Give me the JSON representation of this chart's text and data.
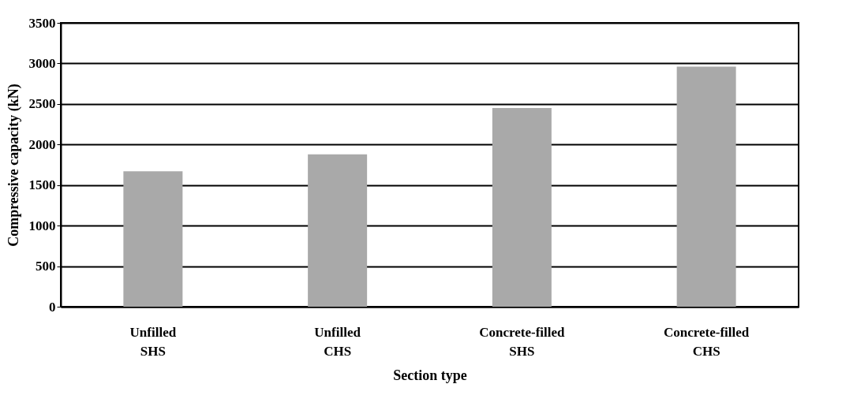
{
  "chart_data": {
    "type": "bar",
    "xlabel": "Section type",
    "ylabel": "Compressive capacity (kN)",
    "categories": [
      "Unfilled\nSHS",
      "Unfilled\nCHS",
      "Concrete-filled\nSHS",
      "Concrete-filled\nCHS"
    ],
    "values": [
      1670,
      1880,
      2450,
      2960
    ],
    "color": "#a9a9a9",
    "ylim": [
      0,
      3500
    ],
    "yticks": [
      0,
      500,
      1000,
      1500,
      2000,
      2500,
      3000,
      3500
    ],
    "grid": "y"
  }
}
